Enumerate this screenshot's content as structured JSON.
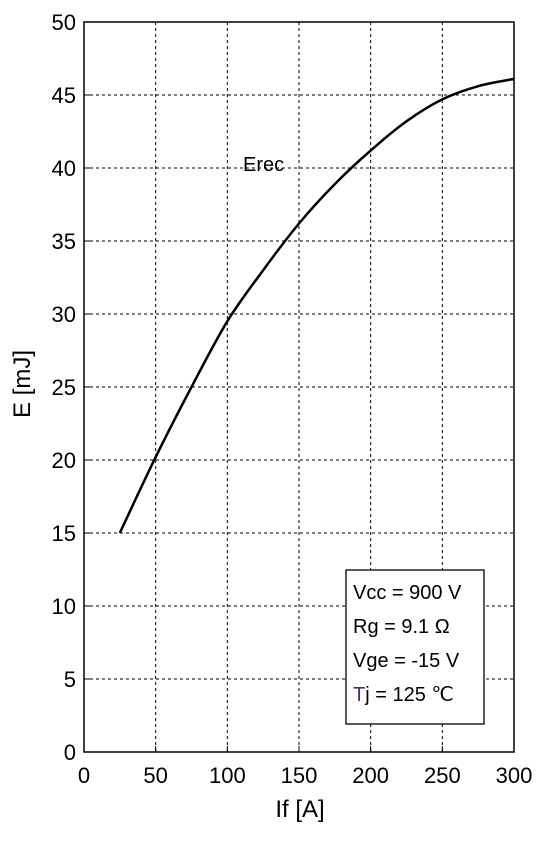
{
  "chart_data": {
    "type": "line",
    "xlabel": "If [A]",
    "ylabel": "E [mJ]",
    "xlim": [
      0,
      300
    ],
    "ylim": [
      0,
      50
    ],
    "xticks": [
      0,
      50,
      100,
      150,
      200,
      250,
      300
    ],
    "yticks": [
      0,
      5,
      10,
      15,
      20,
      25,
      30,
      35,
      40,
      45,
      50
    ],
    "grid": true,
    "series": [
      {
        "name": "Erec",
        "color": "#000000",
        "x": [
          25,
          50,
          75,
          100,
          125,
          150,
          175,
          200,
          225,
          250,
          275,
          300
        ],
        "y": [
          15.0,
          20.2,
          25.0,
          29.5,
          33.0,
          36.2,
          38.9,
          41.2,
          43.2,
          44.7,
          45.6,
          46.1
        ]
      }
    ],
    "conditions": {
      "vcc": "Vcc = 900 V",
      "rg": "Rg = 9.1 Ω",
      "vge": "Vge = -15 V",
      "tj_prefix": "T",
      "tj_rest": "j = 125 ℃"
    }
  }
}
